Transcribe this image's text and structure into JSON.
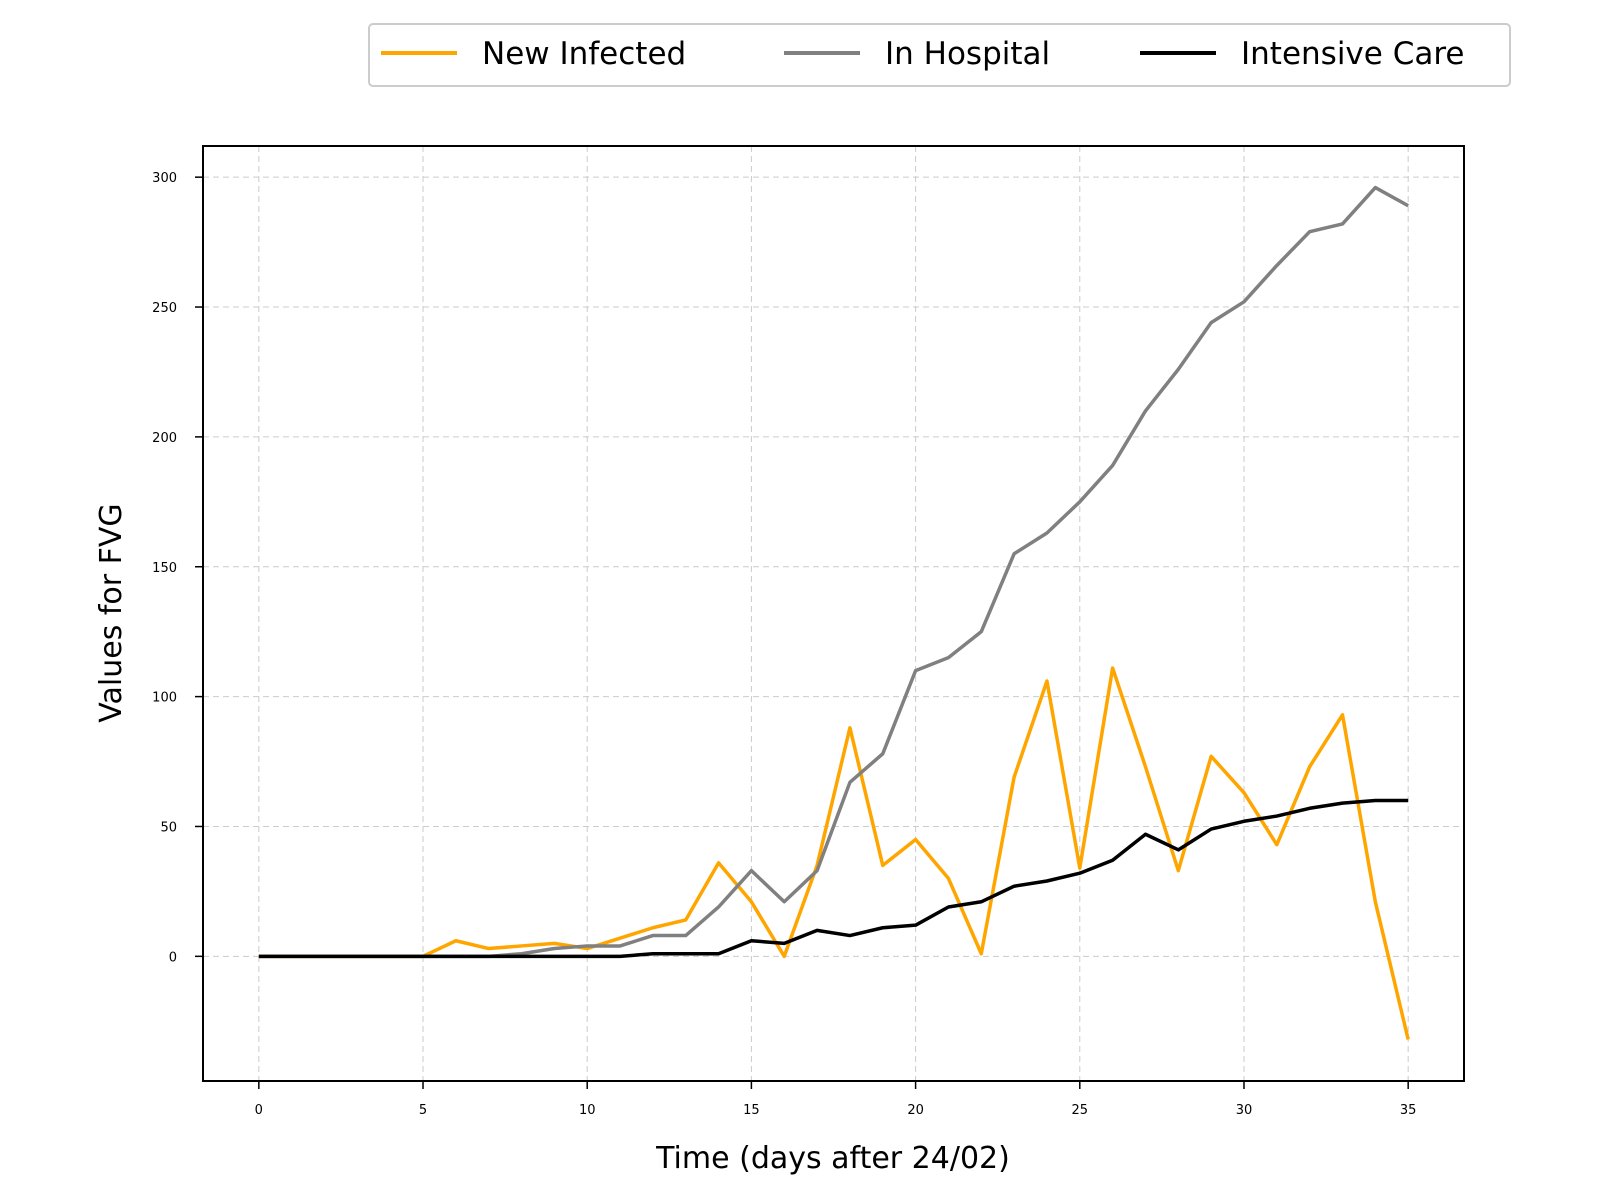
{
  "chart_data": {
    "type": "line",
    "title": "",
    "xlabel": "Time (days after 24/02)",
    "ylabel": "Values for FVG",
    "xlim": [
      -1.7,
      36.7
    ],
    "ylim": [
      -48,
      312
    ],
    "xticks": [
      0,
      5,
      10,
      15,
      20,
      25,
      30,
      35
    ],
    "yticks": [
      0,
      50,
      100,
      150,
      200,
      250,
      300
    ],
    "grid": true,
    "legend_position": "top-right, above plot",
    "x": [
      0,
      1,
      2,
      3,
      4,
      5,
      6,
      7,
      8,
      9,
      10,
      11,
      12,
      13,
      14,
      15,
      16,
      17,
      18,
      19,
      20,
      21,
      22,
      23,
      24,
      25,
      26,
      27,
      28,
      29,
      30,
      31,
      32,
      33,
      34,
      35
    ],
    "series": [
      {
        "name": "New Infected",
        "color": "#FFA500",
        "values": [
          0,
          0,
          0,
          0,
          0,
          0,
          6,
          3,
          4,
          5,
          3,
          7,
          11,
          14,
          36,
          21,
          0,
          35,
          88,
          35,
          45,
          30,
          1,
          69,
          106,
          34,
          111,
          73,
          33,
          77,
          63,
          43,
          73,
          93,
          21,
          -32
        ]
      },
      {
        "name": "In Hospital",
        "color": "#808080",
        "values": [
          0,
          0,
          0,
          0,
          0,
          0,
          0,
          0,
          1,
          3,
          4,
          4,
          8,
          8,
          19,
          33,
          21,
          33,
          67,
          78,
          110,
          115,
          125,
          155,
          163,
          175,
          189,
          210,
          226,
          244,
          252,
          266,
          279,
          282,
          296,
          289
        ]
      },
      {
        "name": "Intensive Care",
        "color": "#000000",
        "values": [
          0,
          0,
          0,
          0,
          0,
          0,
          0,
          0,
          0,
          0,
          0,
          0,
          1,
          1,
          1,
          6,
          5,
          10,
          8,
          11,
          12,
          19,
          21,
          27,
          29,
          32,
          37,
          47,
          41,
          49,
          52,
          54,
          57,
          59,
          60,
          60
        ]
      }
    ]
  }
}
